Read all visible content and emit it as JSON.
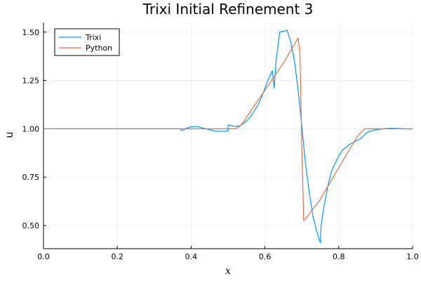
{
  "chart_data": {
    "type": "line",
    "title": "Trixi Initial Refinement 3",
    "xlabel": "x",
    "ylabel": "u",
    "xlim": [
      0.0,
      1.0
    ],
    "ylim": [
      0.38,
      1.55
    ],
    "xticks": [
      0.0,
      0.2,
      0.4,
      0.6,
      0.8,
      1.0
    ],
    "xtick_labels": [
      "0.0",
      "0.2",
      "0.4",
      "0.6",
      "0.8",
      "1.0"
    ],
    "yticks": [
      0.5,
      0.75,
      1.0,
      1.25,
      1.5
    ],
    "ytick_labels": [
      "0.50",
      "0.75",
      "1.00",
      "1.25",
      "1.50"
    ],
    "grid": true,
    "legend_position": "top-left",
    "series": [
      {
        "name": "Trixi",
        "color": "#009AFA",
        "x": [
          0.0,
          0.1,
          0.2,
          0.3,
          0.37,
          0.375,
          0.38,
          0.39,
          0.4,
          0.41,
          0.42,
          0.43,
          0.44,
          0.45,
          0.46,
          0.47,
          0.48,
          0.49,
          0.5,
          0.5,
          0.51,
          0.52,
          0.53,
          0.54,
          0.55,
          0.56,
          0.57,
          0.58,
          0.59,
          0.6,
          0.61,
          0.62,
          0.625,
          0.63,
          0.64,
          0.65,
          0.66,
          0.67,
          0.68,
          0.69,
          0.7,
          0.71,
          0.72,
          0.73,
          0.74,
          0.75,
          0.752,
          0.76,
          0.77,
          0.78,
          0.79,
          0.8,
          0.81,
          0.82,
          0.83,
          0.84,
          0.85,
          0.86,
          0.87,
          0.88,
          0.89,
          0.9,
          0.92,
          0.94,
          0.96,
          0.98,
          1.0
        ],
        "y": [
          1.0,
          1.0,
          1.0,
          1.0,
          1.0,
          0.99,
          0.995,
          1.005,
          1.01,
          1.012,
          1.01,
          1.005,
          1.0,
          0.995,
          0.99,
          0.988,
          0.987,
          0.987,
          0.99,
          1.02,
          1.015,
          1.012,
          1.015,
          1.025,
          1.04,
          1.06,
          1.09,
          1.12,
          1.16,
          1.21,
          1.26,
          1.3,
          1.21,
          1.35,
          1.5,
          1.505,
          1.51,
          1.45,
          1.35,
          1.2,
          1.01,
          0.82,
          0.67,
          0.55,
          0.47,
          0.41,
          0.5,
          0.6,
          0.7,
          0.78,
          0.82,
          0.86,
          0.89,
          0.905,
          0.92,
          0.93,
          0.94,
          0.95,
          0.97,
          0.985,
          0.99,
          0.995,
          1.0,
          1.003,
          1.002,
          1.0,
          0.998
        ]
      },
      {
        "name": "Python",
        "color": "#E26F46",
        "x": [
          0.0,
          0.1,
          0.2,
          0.3,
          0.4,
          0.5,
          0.52,
          0.53,
          0.54,
          0.55,
          0.6,
          0.65,
          0.69,
          0.695,
          0.7,
          0.705,
          0.71,
          0.75,
          0.8,
          0.85,
          0.87,
          0.88,
          0.9,
          0.95,
          1.0
        ],
        "y": [
          1.0,
          1.0,
          1.0,
          1.0,
          1.0,
          1.0,
          1.0,
          1.01,
          1.03,
          1.06,
          1.2,
          1.34,
          1.47,
          1.38,
          0.9,
          0.525,
          0.535,
          0.635,
          0.8,
          0.96,
          1.0,
          1.0,
          1.0,
          1.0,
          1.0
        ]
      }
    ]
  }
}
